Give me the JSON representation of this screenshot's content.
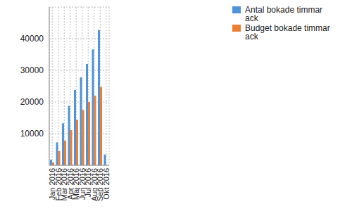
{
  "chart_data": {
    "type": "bar",
    "categories": [
      "Jan 2016",
      "Feb 2016",
      "Mar 2016",
      "Apr 2016",
      "Maj 2016",
      "Jun 2016",
      "Jul 2016",
      "Aug 2016",
      "Sep 2016",
      "Okt 2016"
    ],
    "series": [
      {
        "name": "Antal bokade timmar ack",
        "color": "#4f94d8",
        "values": [
          1800,
          7200,
          13300,
          18800,
          23800,
          27800,
          32000,
          36600,
          42700,
          3400
        ]
      },
      {
        "name": "Budget bokade timmar ack",
        "color": "#ed7d31",
        "values": [
          900,
          4500,
          7800,
          11100,
          14400,
          17500,
          20000,
          22000,
          24700,
          null
        ]
      }
    ],
    "ylim": [
      0,
      50000
    ],
    "yticks": [
      10000,
      20000,
      30000,
      40000
    ],
    "grid": true,
    "legend": "upper right"
  }
}
